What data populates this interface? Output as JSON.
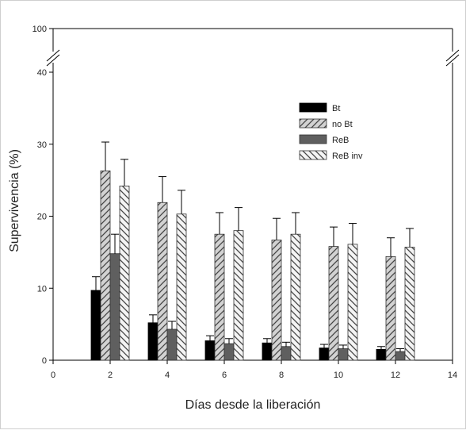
{
  "chart_data": {
    "type": "bar",
    "xlabel": "Días desde la liberación",
    "ylabel": "Supervivencia (%)",
    "x_ticks": [
      "0",
      "2",
      "4",
      "6",
      "8",
      "10",
      "12",
      "14"
    ],
    "y_ticks_lower": [
      "0",
      "10",
      "20",
      "30",
      "40"
    ],
    "y_tick_upper": "100",
    "xlim": [
      0,
      14
    ],
    "ylim_lower": [
      0,
      40
    ],
    "ylim_upper_tick": 100,
    "axis_break": true,
    "categories": [
      2,
      4,
      6,
      8,
      10,
      12
    ],
    "legend_position": "top-right",
    "series": [
      {
        "name": "Bt",
        "pattern": "solid-black",
        "values": [
          9.7,
          5.2,
          2.7,
          2.4,
          1.7,
          1.5
        ],
        "errors": [
          1.9,
          1.1,
          0.7,
          0.6,
          0.5,
          0.4
        ]
      },
      {
        "name": "no Bt",
        "pattern": "hatch-forward",
        "values": [
          26.3,
          21.9,
          17.5,
          16.7,
          15.8,
          14.4
        ],
        "errors": [
          4.0,
          3.6,
          3.0,
          3.0,
          2.7,
          2.6
        ]
      },
      {
        "name": "ReB",
        "pattern": "solid-darkgray",
        "values": [
          14.8,
          4.3,
          2.3,
          1.9,
          1.6,
          1.2
        ],
        "errors": [
          2.7,
          1.1,
          0.7,
          0.6,
          0.5,
          0.4
        ]
      },
      {
        "name": "ReB inv",
        "pattern": "hatch-backward",
        "values": [
          24.2,
          20.3,
          18.0,
          17.5,
          16.1,
          15.7
        ],
        "errors": [
          3.7,
          3.3,
          3.2,
          3.0,
          2.9,
          2.6
        ]
      }
    ]
  }
}
